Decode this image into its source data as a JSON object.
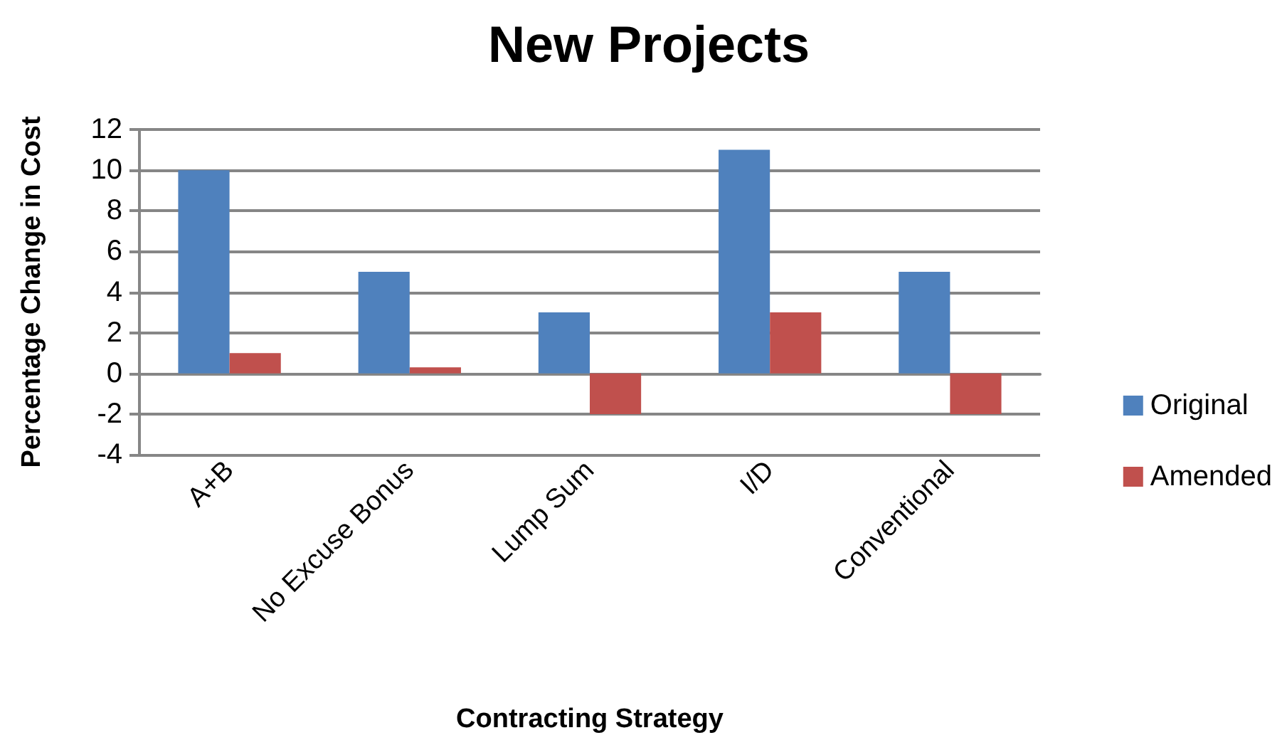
{
  "chart_data": {
    "type": "bar",
    "title": "New Projects",
    "xlabel": "Contracting Strategy",
    "ylabel": "Percentage Change in Cost",
    "categories": [
      "A+B",
      "No Excuse Bonus",
      "Lump Sum",
      "I/D",
      "Conventional"
    ],
    "series": [
      {
        "name": "Original",
        "color": "#4f81bd",
        "values": [
          10,
          5,
          3,
          11,
          5
        ]
      },
      {
        "name": "Amended",
        "color": "#c0504d",
        "values": [
          1,
          0.3,
          -2,
          3,
          -2
        ]
      }
    ],
    "ylim": [
      -4,
      12
    ],
    "yticks": [
      -4,
      -2,
      0,
      2,
      4,
      6,
      8,
      10,
      12
    ],
    "grid": "y",
    "legend": "right"
  }
}
